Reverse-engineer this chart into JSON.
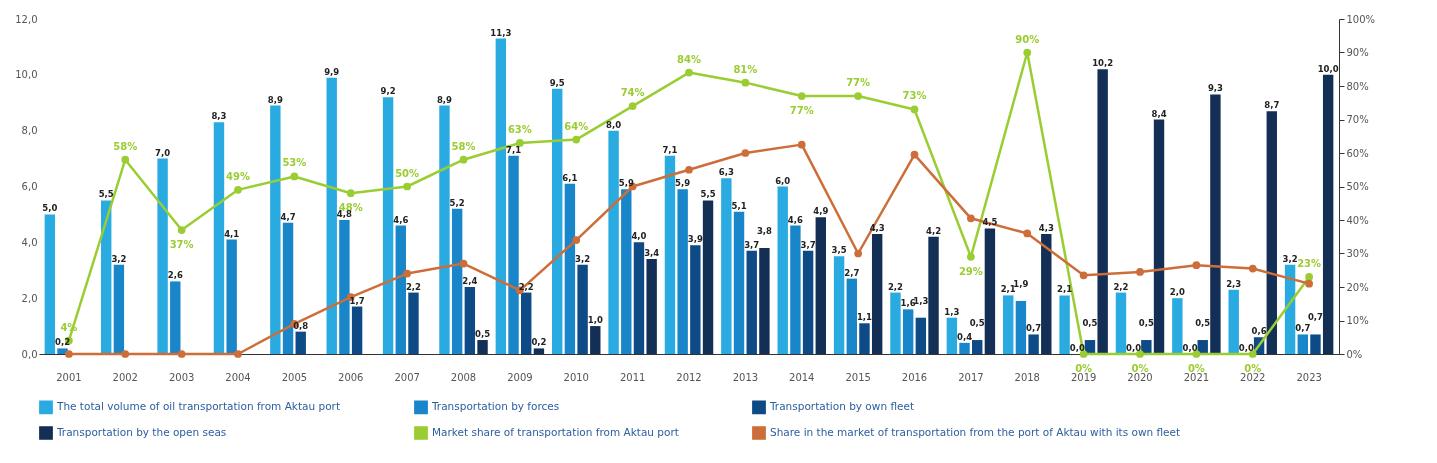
{
  "chart_data": {
    "type": "bar",
    "categories": [
      "2001",
      "2002",
      "2003",
      "2004",
      "2005",
      "2006",
      "2007",
      "2008",
      "2009",
      "2010",
      "2011",
      "2012",
      "2013",
      "2014",
      "2015",
      "2016",
      "2017",
      "2018",
      "2019",
      "2020",
      "2021",
      "2022",
      "2023"
    ],
    "series": [
      {
        "name": "The total volume of oil transportation from Aktau port",
        "color": "#29abe2",
        "values": [
          5.0,
          5.5,
          7.0,
          8.3,
          8.9,
          9.9,
          9.2,
          8.9,
          11.3,
          9.5,
          8.0,
          7.1,
          6.3,
          6.0,
          3.5,
          2.2,
          1.3,
          2.1,
          2.1,
          2.2,
          2.0,
          2.3,
          3.2
        ],
        "value_labels": [
          "5,0",
          "5,5",
          "7,0",
          "8,3",
          "8,9",
          "9,9",
          "9,2",
          "8,9",
          "11,3",
          "9,5",
          "8,0",
          "7,1",
          "6,3",
          "6,0",
          "3,5",
          "2,2",
          "1,3",
          "2,1",
          "2,1",
          "2,2",
          "2,0",
          "2,3",
          "3,2"
        ]
      },
      {
        "name": "Transportation by forces",
        "color": "#1886c8",
        "values": [
          0.2,
          3.2,
          2.6,
          4.1,
          4.7,
          4.8,
          4.6,
          5.2,
          7.1,
          6.1,
          5.9,
          5.9,
          5.1,
          4.6,
          2.7,
          1.6,
          0.4,
          1.9,
          0.0,
          0.0,
          0.0,
          0.0,
          0.7
        ],
        "value_labels": [
          "0,2",
          "3,2",
          "2,6",
          "4,1",
          "4,7",
          "4,8",
          "4,6",
          "5,2",
          "7,1",
          "6,1",
          "5,9",
          "5,9",
          "5,1",
          "4,6",
          "2,7",
          "1,6",
          "0,4",
          "1,9",
          "0,0",
          "0,0",
          "0,0",
          "0,0",
          "0,7"
        ]
      },
      {
        "name": "Transportation by own fleet",
        "color": "#0d4a86",
        "values": [
          null,
          null,
          null,
          null,
          0.8,
          1.7,
          2.2,
          2.4,
          2.2,
          3.2,
          4.0,
          3.9,
          3.7,
          3.7,
          1.1,
          1.3,
          0.5,
          0.7,
          0.5,
          0.5,
          0.5,
          0.6,
          0.7
        ],
        "value_labels": [
          null,
          null,
          null,
          null,
          "0,8",
          "1,7",
          "2,2",
          "2,4",
          "2,2",
          "3,2",
          "4,0",
          "3,9",
          "3,7",
          "3,7",
          "1,1",
          "1,3",
          "0,5",
          "0,7",
          "0,5",
          "0,5",
          "0,5",
          "0,6",
          "0,7"
        ]
      },
      {
        "name": "Transportation by the open seas",
        "color": "#132f55",
        "values": [
          null,
          null,
          null,
          null,
          null,
          null,
          null,
          0.5,
          0.2,
          1.0,
          3.4,
          5.5,
          3.8,
          4.9,
          4.3,
          4.2,
          4.5,
          4.3,
          10.2,
          8.4,
          9.3,
          8.7,
          10.0
        ],
        "value_labels": [
          null,
          null,
          null,
          null,
          null,
          null,
          null,
          "0,5",
          "0,2",
          "1,0",
          "3,4",
          "5,5",
          "3,8",
          "4,9",
          "4,3",
          "4,2",
          "4,5",
          "4,3",
          "10,2",
          "8,4",
          "9,3",
          "8,7",
          "10,0"
        ]
      },
      {
        "name": "Market share of transportation from Aktau port",
        "type": "line",
        "axis": "y2",
        "marker": "circle",
        "color": "#9acd32",
        "values": [
          4,
          58,
          37,
          49,
          53,
          48,
          50,
          58,
          63,
          64,
          74,
          84,
          81,
          77,
          77,
          73,
          29,
          90,
          0,
          0,
          0,
          0,
          23
        ],
        "value_labels": [
          "4%",
          "58%",
          "37%",
          "49%",
          "53%",
          "48%",
          "50%",
          "58%",
          "63%",
          "64%",
          "74%",
          "84%",
          "81%",
          "77%",
          "77%",
          "73%",
          "29%",
          "90%",
          "0%",
          "0%",
          "0%",
          "0%",
          "23%"
        ]
      },
      {
        "name": "Share in the market of transportation from the port of Aktau with its own fleet",
        "type": "line",
        "axis": "y2",
        "marker": "circle",
        "color": "#cd6e3a",
        "values": [
          0,
          0,
          0,
          0,
          9,
          17,
          24,
          27,
          19,
          34,
          50,
          55,
          60,
          62.5,
          30,
          59.5,
          40.5,
          36,
          23.5,
          24.5,
          26.5,
          25.5,
          21
        ]
      }
    ],
    "ylim": [
      0,
      12
    ],
    "yticks": [
      {
        "value": 0,
        "label": "0,0"
      },
      {
        "value": 2,
        "label": "2,0"
      },
      {
        "value": 4,
        "label": "4,0"
      },
      {
        "value": 6,
        "label": "6,0"
      },
      {
        "value": 8,
        "label": "8,0"
      },
      {
        "value": 10,
        "label": "10,0"
      },
      {
        "value": 12,
        "label": "12,0"
      }
    ],
    "y2lim": [
      0,
      100
    ],
    "y2ticks": [
      {
        "value": 0,
        "label": "0%"
      },
      {
        "value": 10,
        "label": "10%"
      },
      {
        "value": 20,
        "label": "20%"
      },
      {
        "value": 30,
        "label": "30%"
      },
      {
        "value": 40,
        "label": "40%"
      },
      {
        "value": 50,
        "label": "50%"
      },
      {
        "value": 60,
        "label": "60%"
      },
      {
        "value": 70,
        "label": "70%"
      },
      {
        "value": 80,
        "label": "80%"
      },
      {
        "value": 90,
        "label": "90%"
      },
      {
        "value": 100,
        "label": "100%"
      }
    ],
    "legend": "bottom"
  }
}
